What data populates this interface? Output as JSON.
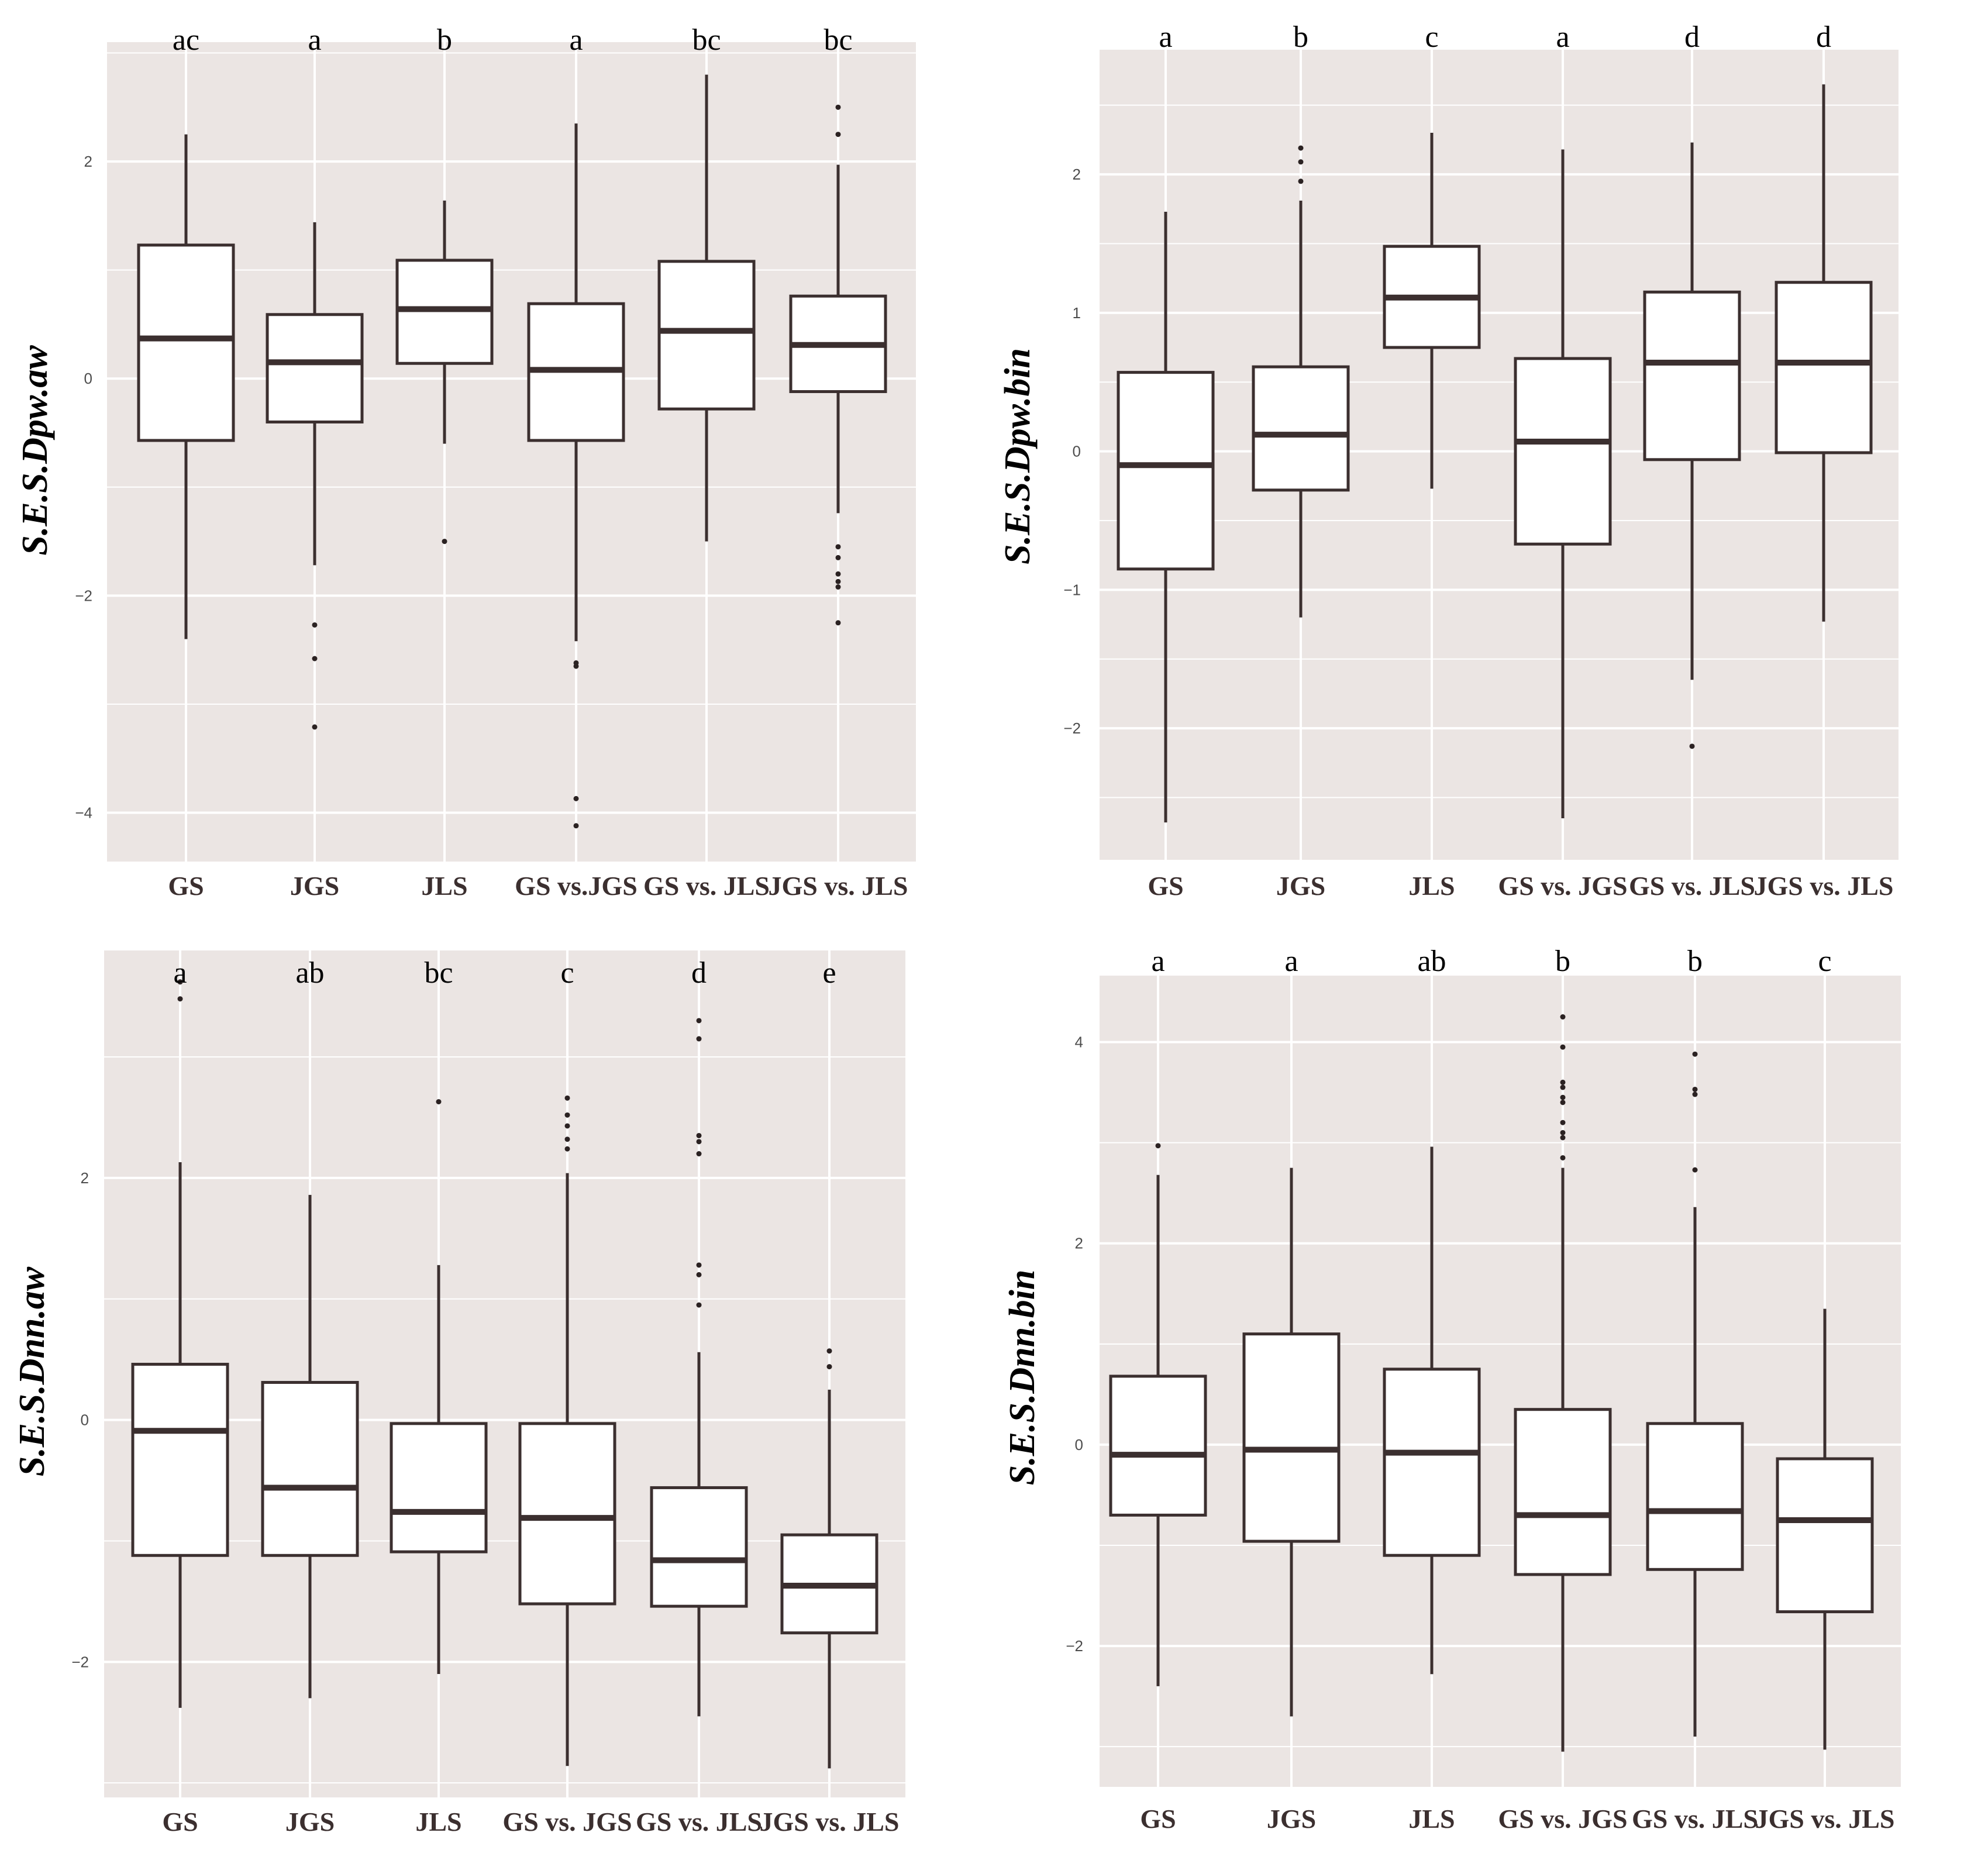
{
  "chart_data": [
    {
      "type": "boxplot",
      "ylabel": "S.E.S.Dpw.aw",
      "ylim": [
        -4.45,
        3.1
      ],
      "yticks": [
        -4,
        -2,
        0,
        2
      ],
      "ytick_labels": [
        "−4",
        "−2",
        "0",
        "2"
      ],
      "categories": [
        "GS",
        "JGS",
        "JLS",
        "GS vs.JGS",
        "GS vs. JLS",
        "JGS vs. JLS"
      ],
      "letters": [
        "ac",
        "a",
        "b",
        "a",
        "bc",
        "bc"
      ],
      "boxes": [
        {
          "min": -2.4,
          "q1": -0.57,
          "median": 0.37,
          "q3": 1.23,
          "max": 2.25,
          "outliers": []
        },
        {
          "min": -1.72,
          "q1": -0.4,
          "median": 0.15,
          "q3": 0.59,
          "max": 1.44,
          "outliers": [
            -2.27,
            -2.58,
            -3.21
          ]
        },
        {
          "min": -0.6,
          "q1": 0.14,
          "median": 0.64,
          "q3": 1.09,
          "max": 1.64,
          "outliers": [
            -1.5
          ]
        },
        {
          "min": -2.42,
          "q1": -0.57,
          "median": 0.08,
          "q3": 0.69,
          "max": 2.35,
          "outliers": [
            -2.62,
            -2.65,
            -3.87,
            -4.12
          ]
        },
        {
          "min": -1.5,
          "q1": -0.28,
          "median": 0.44,
          "q3": 1.08,
          "max": 2.8,
          "outliers": []
        },
        {
          "min": -1.24,
          "q1": -0.12,
          "median": 0.31,
          "q3": 0.76,
          "max": 1.97,
          "outliers": [
            2.5,
            2.25,
            -1.55,
            -1.65,
            -1.8,
            -1.87,
            -1.92,
            -2.25
          ]
        }
      ]
    },
    {
      "type": "boxplot",
      "ylabel": "S.E.S.Dpw.bin",
      "ylim": [
        -2.95,
        2.9
      ],
      "yticks": [
        -2,
        -1,
        0,
        1,
        2
      ],
      "ytick_labels": [
        "−2",
        "−1",
        "0",
        "1",
        "2"
      ],
      "categories": [
        "GS",
        "JGS",
        "JLS",
        "GS vs. JGS",
        "GS vs. JLS",
        "JGS vs. JLS"
      ],
      "letters": [
        "a",
        "b",
        "c",
        "a",
        "d",
        "d"
      ],
      "boxes": [
        {
          "min": -2.68,
          "q1": -0.85,
          "median": -0.1,
          "q3": 0.57,
          "max": 1.73,
          "outliers": []
        },
        {
          "min": -1.2,
          "q1": -0.28,
          "median": 0.12,
          "q3": 0.61,
          "max": 1.81,
          "outliers": [
            2.19,
            2.09,
            1.95
          ]
        },
        {
          "min": -0.27,
          "q1": 0.75,
          "median": 1.11,
          "q3": 1.48,
          "max": 2.3,
          "outliers": []
        },
        {
          "min": -2.65,
          "q1": -0.67,
          "median": 0.07,
          "q3": 0.67,
          "max": 2.18,
          "outliers": []
        },
        {
          "min": -1.65,
          "q1": -0.06,
          "median": 0.64,
          "q3": 1.15,
          "max": 2.23,
          "outliers": [
            -2.13
          ]
        },
        {
          "min": -1.23,
          "q1": -0.01,
          "median": 0.64,
          "q3": 1.22,
          "max": 2.65,
          "outliers": []
        }
      ]
    },
    {
      "type": "boxplot",
      "ylabel": "S.E.S.Dnn.aw",
      "ylim": [
        -3.12,
        3.88
      ],
      "yticks": [
        -2,
        0,
        2
      ],
      "ytick_labels": [
        "−2",
        "0",
        "2"
      ],
      "categories": [
        "GS",
        "JGS",
        "JLS",
        "GS vs. JGS",
        "GS vs. JLS",
        "JGS vs. JLS"
      ],
      "letters": [
        "a",
        "ab",
        "bc",
        "c",
        "d",
        "e"
      ],
      "boxes": [
        {
          "min": -2.38,
          "q1": -1.12,
          "median": -0.09,
          "q3": 0.46,
          "max": 2.13,
          "outliers": [
            3.62,
            3.48
          ]
        },
        {
          "min": -2.3,
          "q1": -1.12,
          "median": -0.56,
          "q3": 0.31,
          "max": 1.86,
          "outliers": []
        },
        {
          "min": -2.1,
          "q1": -1.09,
          "median": -0.76,
          "q3": -0.03,
          "max": 1.28,
          "outliers": [
            2.63
          ]
        },
        {
          "min": -2.86,
          "q1": -1.52,
          "median": -0.81,
          "q3": -0.03,
          "max": 2.04,
          "outliers": [
            2.66,
            2.52,
            2.43,
            2.32,
            2.24
          ]
        },
        {
          "min": -2.45,
          "q1": -1.54,
          "median": -1.16,
          "q3": -0.56,
          "max": 0.56,
          "outliers": [
            3.3,
            3.15,
            2.35,
            2.3,
            2.2,
            1.28,
            1.2,
            0.95
          ]
        },
        {
          "min": -2.88,
          "q1": -1.76,
          "median": -1.37,
          "q3": -0.95,
          "max": 0.25,
          "outliers": [
            0.57,
            0.44
          ]
        }
      ]
    },
    {
      "type": "boxplot",
      "ylabel": "S.E.S.Dnn.bin",
      "ylim": [
        -3.4,
        4.66
      ],
      "yticks": [
        -2,
        0,
        2,
        4
      ],
      "ytick_labels": [
        "−2",
        "0",
        "2",
        "4"
      ],
      "categories": [
        "GS",
        "JGS",
        "JLS",
        "GS vs. JGS",
        "GS vs. JLS",
        "JGS vs. JLS"
      ],
      "letters": [
        "a",
        "a",
        "ab",
        "b",
        "b",
        "c"
      ],
      "boxes": [
        {
          "min": -2.4,
          "q1": -0.7,
          "median": -0.1,
          "q3": 0.68,
          "max": 2.68,
          "outliers": [
            2.97
          ]
        },
        {
          "min": -2.7,
          "q1": -0.96,
          "median": -0.05,
          "q3": 1.1,
          "max": 2.75,
          "outliers": []
        },
        {
          "min": -2.28,
          "q1": -1.1,
          "median": -0.08,
          "q3": 0.75,
          "max": 2.96,
          "outliers": []
        },
        {
          "min": -3.05,
          "q1": -1.29,
          "median": -0.7,
          "q3": 0.35,
          "max": 2.75,
          "outliers": [
            4.25,
            3.95,
            3.6,
            3.55,
            3.45,
            3.4,
            3.2,
            3.1,
            3.05,
            2.85
          ]
        },
        {
          "min": -2.9,
          "q1": -1.24,
          "median": -0.66,
          "q3": 0.21,
          "max": 2.36,
          "outliers": [
            3.88,
            3.53,
            3.48,
            2.73
          ]
        },
        {
          "min": -3.03,
          "q1": -1.66,
          "median": -0.75,
          "q3": -0.14,
          "max": 1.35,
          "outliers": []
        }
      ]
    }
  ]
}
